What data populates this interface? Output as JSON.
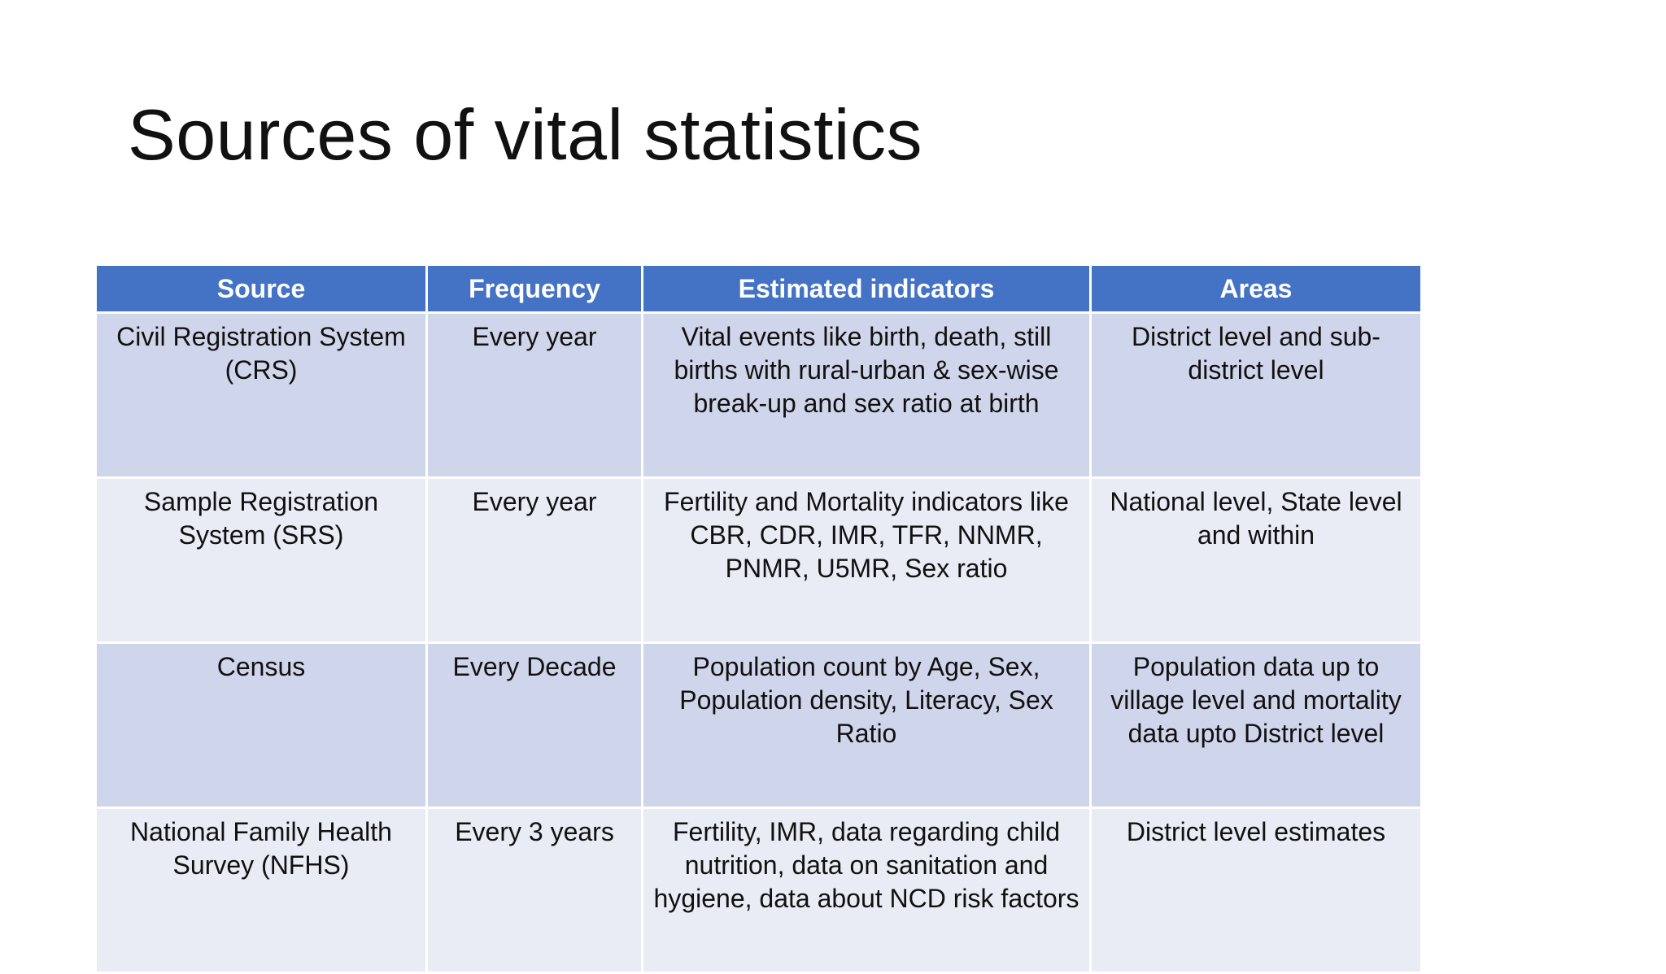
{
  "slide": {
    "title": "Sources of vital statistics"
  },
  "table": {
    "headers": [
      "Source",
      "Frequency",
      "Estimated indicators",
      "Areas"
    ],
    "rows": [
      {
        "source": "Civil Registration System (CRS)",
        "frequency": "Every year",
        "indicators": "Vital events like birth, death, still births with rural-urban & sex-wise break-up and sex ratio at birth",
        "areas": "District level and sub-district level"
      },
      {
        "source": "Sample Registration System (SRS)",
        "frequency": "Every year",
        "indicators": "Fertility and Mortality indicators like CBR, CDR, IMR, TFR, NNMR, PNMR, U5MR, Sex ratio",
        "areas": "National level, State level and within"
      },
      {
        "source": "Census",
        "frequency": "Every Decade",
        "indicators": "Population count by Age, Sex, Population density, Literacy, Sex Ratio",
        "areas": "Population data up to village level and mortality data upto District level"
      },
      {
        "source": "National Family Health Survey (NFHS)",
        "frequency": "Every 3 years",
        "indicators": "Fertility, IMR, data regarding child nutrition, data on sanitation and hygiene, data about NCD risk factors",
        "areas": "District level estimates"
      }
    ]
  }
}
